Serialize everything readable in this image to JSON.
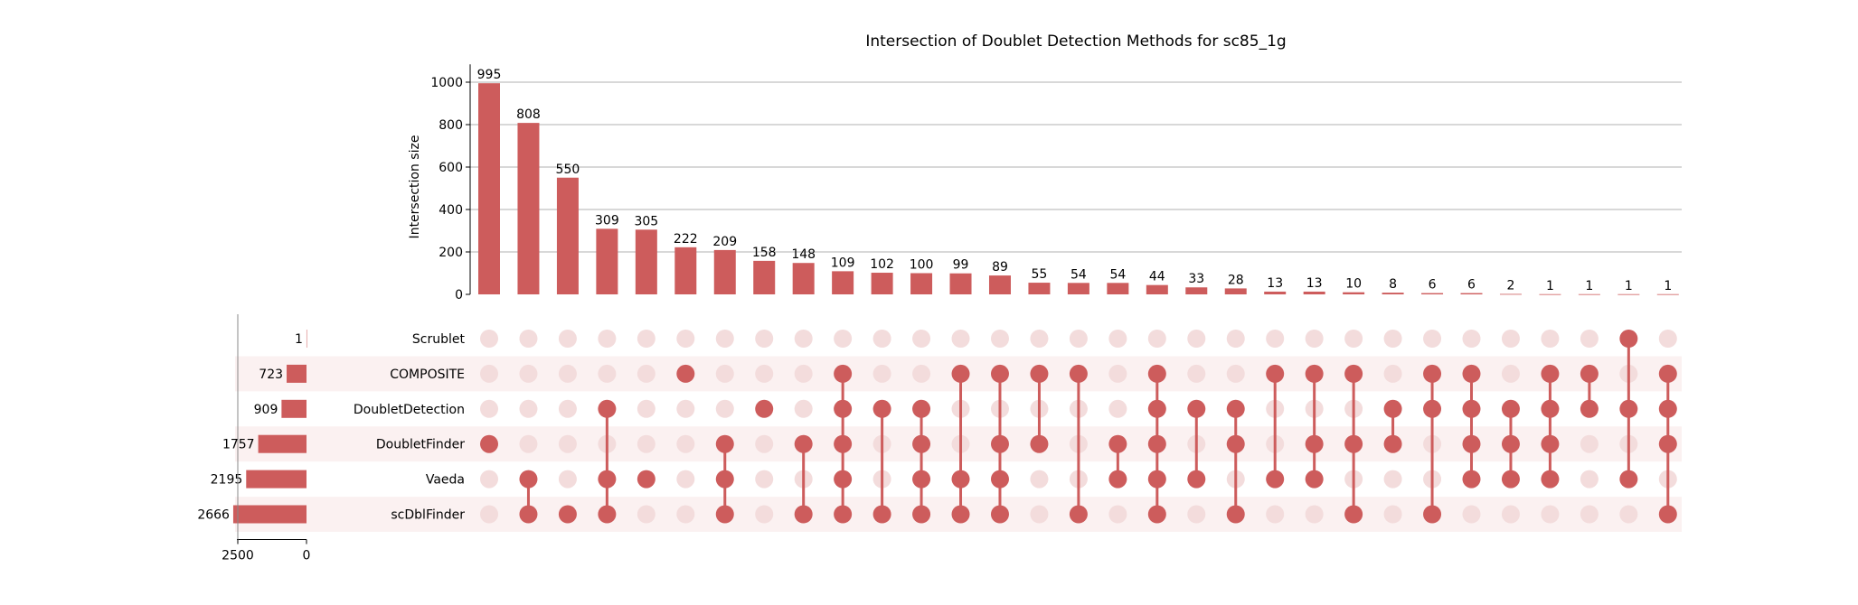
{
  "chart_data": {
    "type": "bar",
    "subtype": "upset",
    "title": "Intersection of Doublet Detection Methods for sc85_1g",
    "ylabel": "Intersection size",
    "ylim": [
      0,
      1050
    ],
    "yticks": [
      0,
      200,
      400,
      600,
      800,
      1000
    ],
    "grid": true,
    "colors": {
      "bar": "#cd5c5c",
      "inactive_dot": "#f3dcdc",
      "stripe": "#fbf1f1",
      "grid": "#b0b0b0"
    },
    "sets": [
      {
        "name": "Scrublet",
        "size": 1
      },
      {
        "name": "COMPOSITE",
        "size": 723
      },
      {
        "name": "DoubletDetection",
        "size": 909
      },
      {
        "name": "DoubletFinder",
        "size": 1757
      },
      {
        "name": "Vaeda",
        "size": 2195
      },
      {
        "name": "scDblFinder",
        "size": 2666
      }
    ],
    "set_size_axis": {
      "ticks": [
        2500,
        0
      ],
      "xlim": [
        0,
        2700
      ]
    },
    "intersections": [
      {
        "value": 995,
        "label": "995",
        "members": [
          "DoubletFinder"
        ]
      },
      {
        "value": 808,
        "label": "808",
        "members": [
          "Vaeda",
          "scDblFinder"
        ]
      },
      {
        "value": 550,
        "label": "550",
        "members": [
          "scDblFinder"
        ]
      },
      {
        "value": 309,
        "label": "309",
        "members": [
          "DoubletDetection",
          "Vaeda",
          "scDblFinder"
        ]
      },
      {
        "value": 305,
        "label": "305",
        "members": [
          "Vaeda"
        ]
      },
      {
        "value": 222,
        "label": "222",
        "members": [
          "COMPOSITE"
        ]
      },
      {
        "value": 209,
        "label": "209",
        "members": [
          "DoubletFinder",
          "Vaeda",
          "scDblFinder"
        ]
      },
      {
        "value": 158,
        "label": "158",
        "members": [
          "DoubletDetection"
        ]
      },
      {
        "value": 148,
        "label": "148",
        "members": [
          "DoubletFinder",
          "scDblFinder"
        ]
      },
      {
        "value": 109,
        "label": "109",
        "members": [
          "COMPOSITE",
          "DoubletDetection",
          "DoubletFinder",
          "Vaeda",
          "scDblFinder"
        ]
      },
      {
        "value": 102,
        "label": "102",
        "members": [
          "DoubletDetection",
          "scDblFinder"
        ]
      },
      {
        "value": 100,
        "label": "100",
        "members": [
          "DoubletDetection",
          "DoubletFinder",
          "Vaeda",
          "scDblFinder"
        ]
      },
      {
        "value": 99,
        "label": "99",
        "members": [
          "COMPOSITE",
          "Vaeda",
          "scDblFinder"
        ]
      },
      {
        "value": 89,
        "label": "89",
        "members": [
          "COMPOSITE",
          "DoubletFinder",
          "Vaeda",
          "scDblFinder"
        ]
      },
      {
        "value": 55,
        "label": "55",
        "members": [
          "COMPOSITE",
          "DoubletFinder"
        ]
      },
      {
        "value": 54,
        "label": "54",
        "members": [
          "COMPOSITE",
          "scDblFinder"
        ]
      },
      {
        "value": 54,
        "label": "54",
        "members": [
          "DoubletFinder",
          "Vaeda"
        ]
      },
      {
        "value": 44,
        "label": "44",
        "members": [
          "COMPOSITE",
          "DoubletDetection",
          "DoubletFinder",
          "Vaeda",
          "scDblFinder"
        ]
      },
      {
        "value": 33,
        "label": "33",
        "members": [
          "DoubletDetection",
          "Vaeda"
        ]
      },
      {
        "value": 28,
        "label": "28",
        "members": [
          "DoubletDetection",
          "DoubletFinder",
          "scDblFinder"
        ]
      },
      {
        "value": 13,
        "label": "13",
        "members": [
          "COMPOSITE",
          "Vaeda"
        ]
      },
      {
        "value": 13,
        "label": "13",
        "members": [
          "COMPOSITE",
          "DoubletFinder",
          "Vaeda"
        ]
      },
      {
        "value": 10,
        "label": "10",
        "members": [
          "COMPOSITE",
          "DoubletFinder",
          "scDblFinder"
        ]
      },
      {
        "value": 8,
        "label": "8",
        "members": [
          "DoubletDetection",
          "DoubletFinder"
        ]
      },
      {
        "value": 6,
        "label": "6",
        "members": [
          "COMPOSITE",
          "DoubletDetection",
          "scDblFinder"
        ]
      },
      {
        "value": 6,
        "label": "6",
        "members": [
          "COMPOSITE",
          "DoubletDetection",
          "DoubletFinder",
          "Vaeda"
        ]
      },
      {
        "value": 2,
        "label": "2",
        "members": [
          "DoubletDetection",
          "DoubletFinder",
          "Vaeda"
        ]
      },
      {
        "value": 1,
        "label": "1",
        "members": [
          "COMPOSITE",
          "DoubletDetection",
          "DoubletFinder",
          "Vaeda"
        ]
      },
      {
        "value": 1,
        "label": "1",
        "members": [
          "COMPOSITE",
          "DoubletDetection"
        ]
      },
      {
        "value": 1,
        "label": "1",
        "members": [
          "Scrublet",
          "DoubletDetection",
          "Vaeda"
        ]
      },
      {
        "value": 1,
        "label": "1",
        "members": [
          "COMPOSITE",
          "DoubletDetection",
          "DoubletFinder",
          "scDblFinder"
        ]
      }
    ]
  }
}
